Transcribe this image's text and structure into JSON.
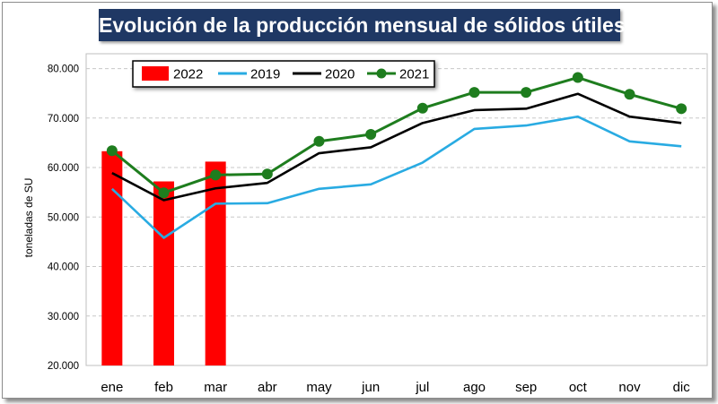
{
  "chart_data": {
    "type": "bar+line",
    "title": "Evolución de la producción mensual de sólidos útiles",
    "xlabel": "",
    "ylabel": "toneladas de SU",
    "ylim": [
      20000,
      83000
    ],
    "yticks": [
      20000,
      30000,
      40000,
      50000,
      60000,
      70000,
      80000
    ],
    "ytick_labels": [
      "20.000",
      "30.000",
      "40.000",
      "50.000",
      "60.000",
      "70.000",
      "80.000"
    ],
    "grid": "horizontal dashed",
    "legend_position": "top-left",
    "categories": [
      "ene",
      "feb",
      "mar",
      "abr",
      "may",
      "jun",
      "jul",
      "ago",
      "sep",
      "oct",
      "nov",
      "dic"
    ],
    "series": [
      {
        "name": "2022",
        "kind": "bar",
        "color": "#ff0000",
        "values": [
          63300,
          57200,
          61200,
          null,
          null,
          null,
          null,
          null,
          null,
          null,
          null,
          null
        ]
      },
      {
        "name": "2019",
        "kind": "line",
        "color": "#29abe2",
        "values": [
          55700,
          45800,
          52700,
          52800,
          55700,
          56600,
          61000,
          67800,
          68500,
          70300,
          65300,
          64300
        ]
      },
      {
        "name": "2020",
        "kind": "line",
        "color": "#000000",
        "values": [
          58900,
          53400,
          55800,
          56900,
          62900,
          64100,
          69000,
          71600,
          71900,
          74900,
          70300,
          69000
        ]
      },
      {
        "name": "2021",
        "kind": "line+marker",
        "color": "#1e7d1e",
        "values": [
          63400,
          54900,
          58500,
          58700,
          65300,
          66700,
          72000,
          75200,
          75200,
          78200,
          74800,
          71900
        ]
      }
    ]
  }
}
